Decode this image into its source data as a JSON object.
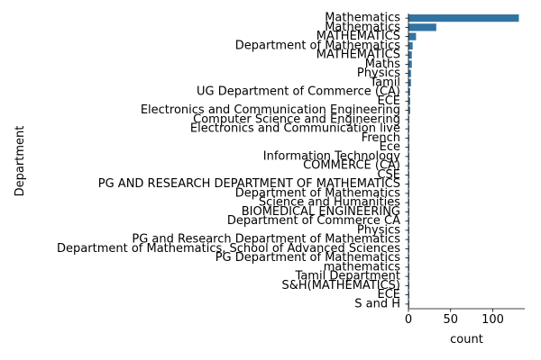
{
  "chart_data": {
    "type": "bar",
    "orientation": "horizontal",
    "xlabel": "count",
    "ylabel": "Department",
    "xlim": [
      0,
      138
    ],
    "xticks": [
      0,
      50,
      100
    ],
    "grid": false,
    "bar_color": "#3274a1",
    "categories": [
      "Mathematics ",
      "Mathematics",
      "MATHEMATICS ",
      "Department of Mathematics ",
      "MATHEMATICS",
      "Maths",
      "Physics ",
      "Tamil ",
      "UG Department of Commerce (CA)",
      "ECE",
      "Electronics and Communication Engineering",
      "Computer Science and Engineering ",
      "Electronics and Communication live ",
      "French",
      "Ece",
      "Information Technology ",
      "COMMERCE (CA) ",
      "CSE",
      "PG AND RESEARCH DEPARTMENT OF MATHEMATICS",
      "Department of Mathematics",
      "Science and Humanities",
      "BIOMEDICAL ENGINEERING ",
      "Department of Commerce CA",
      "Physics",
      "PG and Research Department of Mathematics ",
      "Department of Mathematics, School of Advanced Sciences",
      "PG Department of Mathematics",
      "mathematics",
      "Tamil Department ",
      "S&H(MATHEMATICS)",
      "ECE ",
      "S and H"
    ],
    "values": [
      131,
      33,
      9,
      5,
      4,
      4,
      3,
      3,
      2,
      2,
      2,
      1,
      1,
      1,
      1,
      1,
      1,
      1,
      1,
      1,
      1,
      1,
      1,
      1,
      1,
      1,
      1,
      1,
      1,
      1,
      1,
      1
    ]
  }
}
